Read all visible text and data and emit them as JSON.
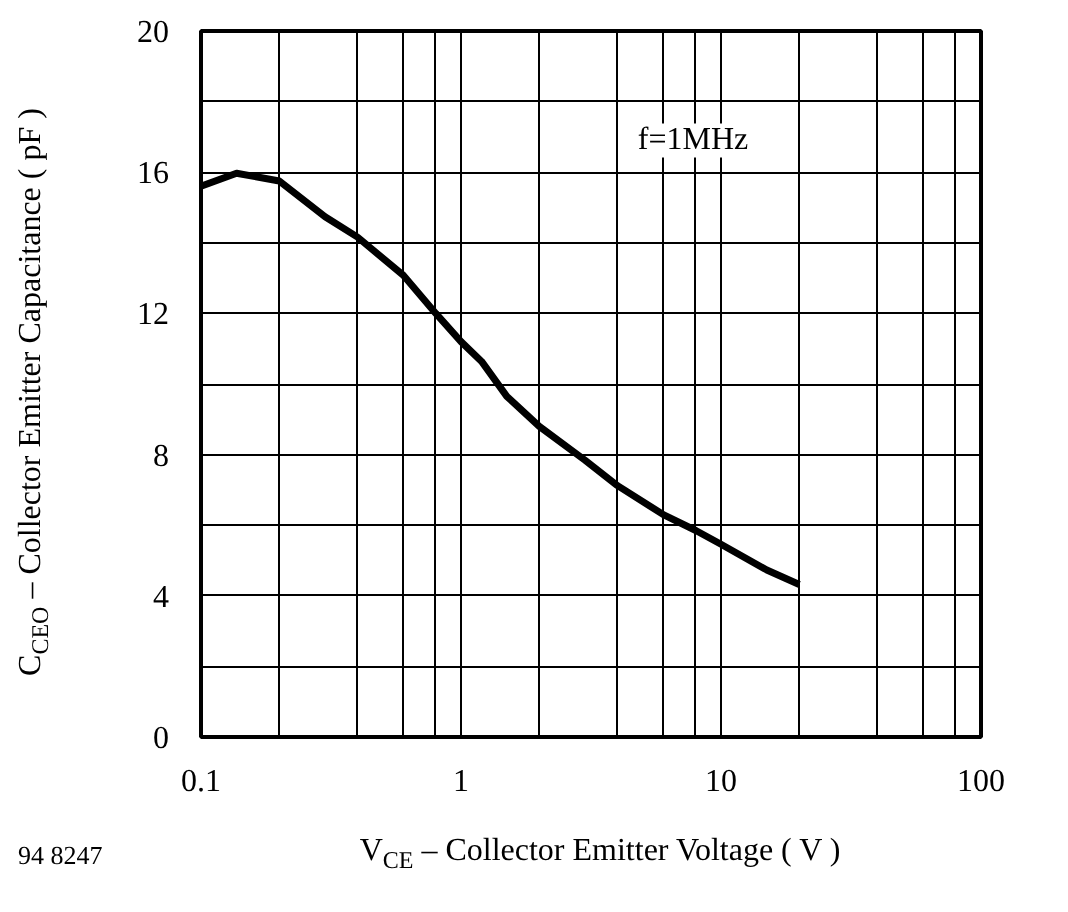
{
  "chart_data": {
    "type": "line",
    "xlabel": "V$_{CE}$ – Collector Emitter Voltage ( V )",
    "ylabel": "C$_{CEO}$ – Collector Emitter Capacitance ( pF )",
    "annotations": [
      "f=1MHz",
      "94 8247"
    ],
    "log": "x",
    "grid": true,
    "marker": "none",
    "line_style": "solid",
    "xlim": [
      0.1,
      100
    ],
    "ylim": [
      0,
      20
    ],
    "xticks": [
      0.1,
      {
        "value": 0.2,
        "label": null
      },
      {
        "value": 0.4,
        "label": null
      },
      {
        "value": 0.6,
        "label": null
      },
      {
        "value": 0.8,
        "label": null
      },
      1,
      {
        "value": 2,
        "label": null
      },
      {
        "value": 4,
        "label": null
      },
      {
        "value": 6,
        "label": null
      },
      {
        "value": 8,
        "label": null
      },
      10,
      {
        "value": 20,
        "label": null
      },
      {
        "value": 40,
        "label": null
      },
      {
        "value": 60,
        "label": null
      },
      {
        "value": 80,
        "label": null
      },
      100
    ],
    "yticks": [
      0,
      {
        "value": 2,
        "label": null
      },
      4,
      {
        "value": 6,
        "label": null
      },
      8,
      {
        "value": 10,
        "label": null
      },
      12,
      {
        "value": 14,
        "label": null
      },
      16,
      {
        "value": 18,
        "label": null
      },
      20
    ],
    "series": [
      {
        "color": "#000000",
        "x": [
          0.1,
          0.137,
          0.2,
          0.3,
          0.4,
          0.6,
          0.8,
          1,
          1.2,
          1.5,
          2,
          3,
          4,
          6,
          8,
          10,
          15,
          20
        ],
        "values": [
          15.6,
          15.97,
          15.75,
          14.74,
          14.16,
          13.08,
          12.0,
          11.2,
          10.64,
          9.65,
          8.8,
          7.84,
          7.12,
          6.3,
          5.85,
          5.46,
          4.73,
          4.32
        ]
      }
    ]
  }
}
